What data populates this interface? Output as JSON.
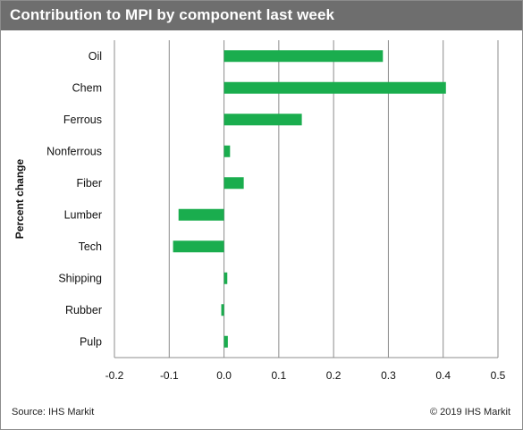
{
  "header": {
    "title": "Contribution to MPI by component last week"
  },
  "footer": {
    "source": "Source: IHS Markit",
    "copyright": "© 2019 IHS Markit"
  },
  "colors": {
    "bar": "#1aad4e",
    "grid": "#8c8c8c",
    "header_bg": "#6e6e6e"
  },
  "chart_data": {
    "type": "bar",
    "orientation": "horizontal",
    "title": "Contribution to MPI by component last week",
    "ylabel": "Percent change",
    "xlabel": "",
    "categories": [
      "Oil",
      "Chem",
      "Ferrous",
      "Nonferrous",
      "Fiber",
      "Lumber",
      "Tech",
      "Shipping",
      "Rubber",
      "Pulp"
    ],
    "values": [
      0.29,
      0.405,
      0.142,
      0.011,
      0.036,
      -0.083,
      -0.093,
      0.006,
      -0.005,
      0.007
    ],
    "xlim": [
      -0.2,
      0.5
    ],
    "xticks": [
      -0.2,
      -0.1,
      0.0,
      0.1,
      0.2,
      0.3,
      0.4,
      0.5
    ],
    "xtick_labels": [
      "-0.2",
      "-0.1",
      "0.0",
      "0.1",
      "0.2",
      "0.3",
      "0.4",
      "0.5"
    ],
    "grid": true,
    "legend": false
  }
}
